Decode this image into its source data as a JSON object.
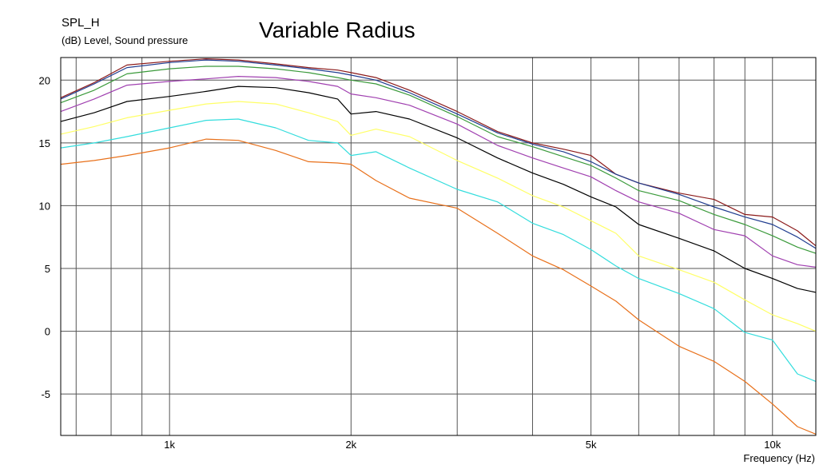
{
  "chart_data": {
    "type": "line",
    "title": "Variable Radius",
    "ylabel": "SPL_H",
    "yunit": "(dB)  Level, Sound pressure",
    "xlabel": "Frequency  (Hz)",
    "xscale": "log",
    "xlim": [
      660,
      11800
    ],
    "ylim": [
      -8.3,
      21.8
    ],
    "yticks": [
      20,
      15,
      10,
      5,
      0,
      -5
    ],
    "ytick_labels": [
      "20",
      "15",
      "10",
      "5",
      "0",
      "-5"
    ],
    "xticks": [
      1000,
      2000,
      5000,
      10000
    ],
    "xtick_labels": [
      "1k",
      "2k",
      "5k",
      "10k"
    ],
    "grid": true,
    "x": [
      660,
      750,
      850,
      1000,
      1150,
      1300,
      1500,
      1700,
      1900,
      2000,
      2200,
      2500,
      3000,
      3500,
      4000,
      4500,
      5000,
      5500,
      6000,
      7000,
      8000,
      9000,
      10000,
      11000,
      11800
    ],
    "series": [
      {
        "color": "#8b1a1a",
        "values": [
          18.6,
          19.8,
          21.2,
          21.5,
          21.7,
          21.6,
          21.3,
          21.0,
          20.8,
          20.6,
          20.2,
          19.2,
          17.5,
          15.9,
          15.0,
          14.5,
          14.0,
          12.5,
          11.8,
          11.0,
          10.5,
          9.3,
          9.1,
          8.0,
          6.8
        ]
      },
      {
        "color": "#1f3c8f",
        "values": [
          18.5,
          19.7,
          21.0,
          21.4,
          21.6,
          21.5,
          21.2,
          20.9,
          20.6,
          20.4,
          20.0,
          19.0,
          17.3,
          15.8,
          14.9,
          14.3,
          13.5,
          12.5,
          11.8,
          10.9,
          9.9,
          9.1,
          8.5,
          7.5,
          6.6
        ]
      },
      {
        "color": "#3a9a3a",
        "values": [
          18.2,
          19.2,
          20.5,
          20.9,
          21.1,
          21.1,
          20.9,
          20.6,
          20.2,
          20.0,
          19.7,
          18.8,
          17.1,
          15.5,
          14.7,
          13.9,
          13.2,
          12.2,
          11.2,
          10.4,
          9.3,
          8.5,
          7.6,
          6.7,
          6.2
        ]
      },
      {
        "color": "#a040b0",
        "values": [
          17.5,
          18.5,
          19.6,
          19.9,
          20.1,
          20.3,
          20.2,
          19.9,
          19.5,
          18.9,
          18.6,
          18.0,
          16.5,
          14.8,
          13.8,
          13.0,
          12.3,
          11.2,
          10.3,
          9.4,
          8.1,
          7.6,
          6.0,
          5.3,
          5.1
        ]
      },
      {
        "color": "#000000",
        "values": [
          16.7,
          17.4,
          18.3,
          18.7,
          19.1,
          19.5,
          19.4,
          19.0,
          18.5,
          17.3,
          17.5,
          16.9,
          15.4,
          13.8,
          12.6,
          11.7,
          10.7,
          9.9,
          8.5,
          7.4,
          6.4,
          5.0,
          4.2,
          3.4,
          3.1
        ]
      },
      {
        "color": "#ffff66",
        "values": [
          15.7,
          16.3,
          17.0,
          17.6,
          18.1,
          18.3,
          18.1,
          17.4,
          16.7,
          15.6,
          16.1,
          15.5,
          13.6,
          12.2,
          10.8,
          9.9,
          8.8,
          7.8,
          6.0,
          4.9,
          3.9,
          2.5,
          1.3,
          0.6,
          0.0
        ]
      },
      {
        "color": "#33dddd",
        "values": [
          14.6,
          15.0,
          15.5,
          16.2,
          16.8,
          16.9,
          16.2,
          15.2,
          15.0,
          14.0,
          14.3,
          13.0,
          11.3,
          10.3,
          8.6,
          7.7,
          6.5,
          5.2,
          4.2,
          3.0,
          1.8,
          -0.1,
          -0.7,
          -3.4,
          -4.0
        ]
      },
      {
        "color": "#e8701a",
        "values": [
          13.3,
          13.6,
          14.0,
          14.6,
          15.3,
          15.2,
          14.4,
          13.5,
          13.4,
          13.3,
          12.0,
          10.6,
          9.8,
          7.8,
          6.0,
          4.9,
          3.6,
          2.4,
          0.9,
          -1.2,
          -2.4,
          -4.0,
          -5.8,
          -7.6,
          -8.2
        ]
      }
    ]
  }
}
